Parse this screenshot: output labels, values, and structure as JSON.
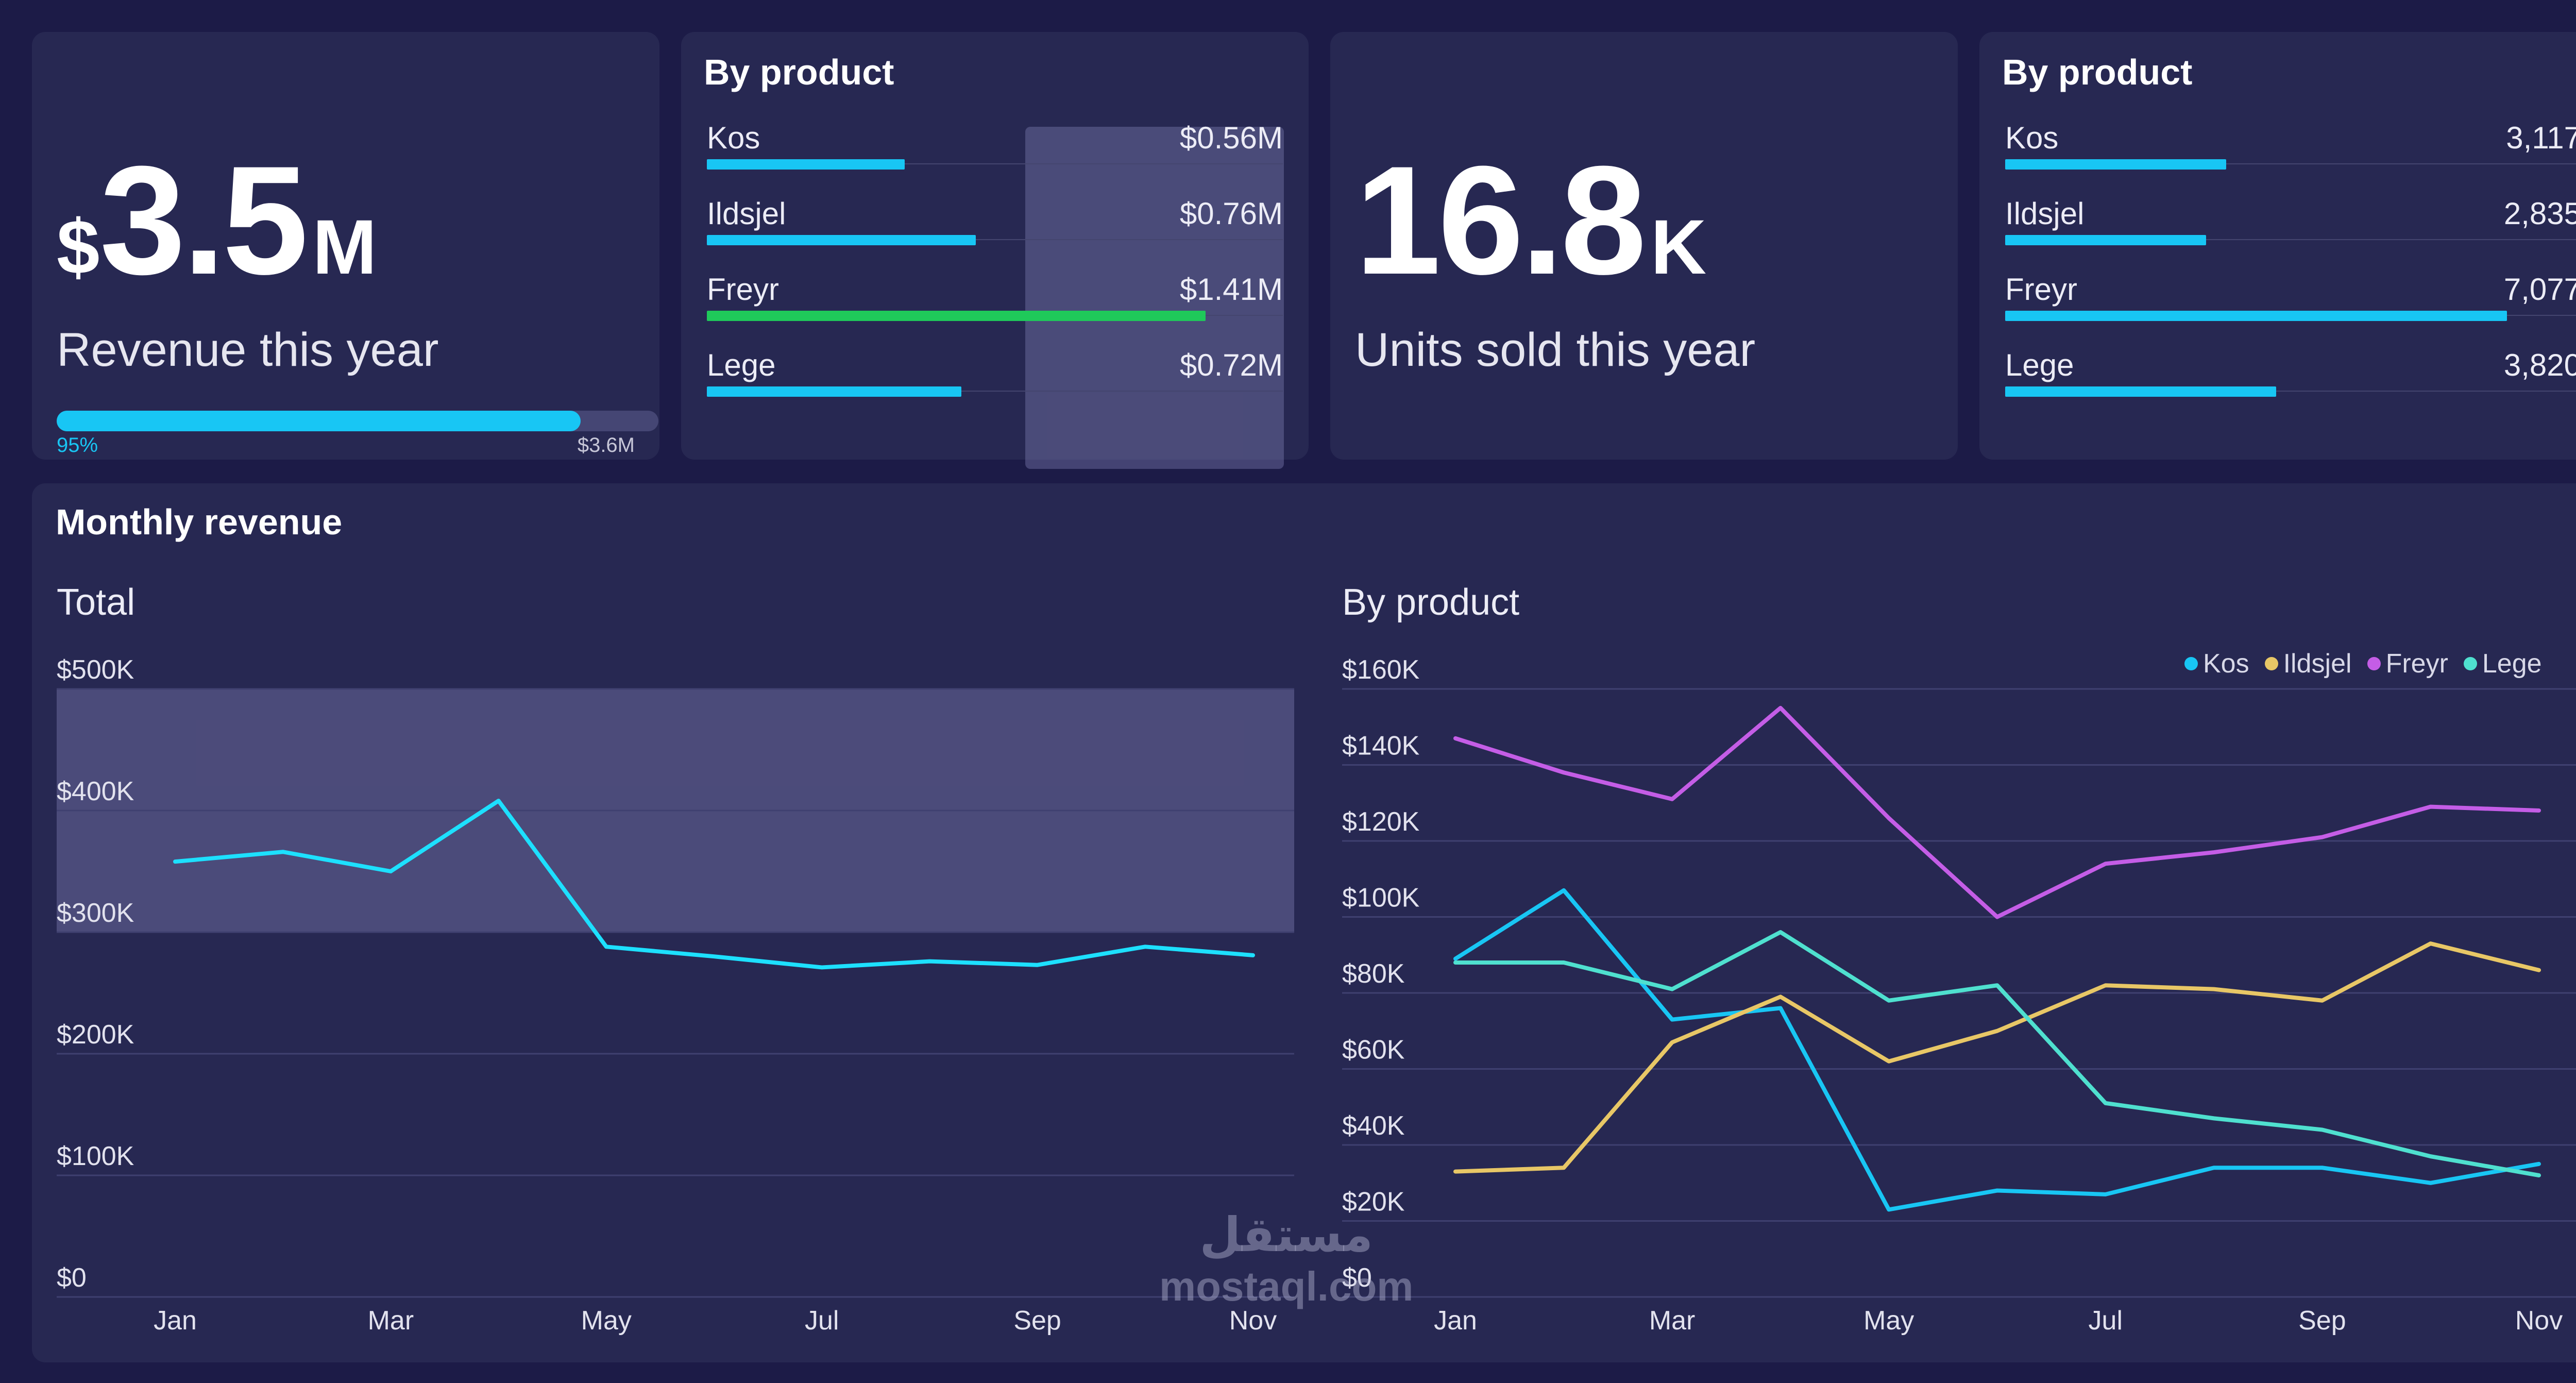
{
  "revenue_card": {
    "prefix": "$",
    "value": "3.5",
    "suffix": "M",
    "label": "Revenue this year",
    "progress_pct_label": "95%",
    "progress_fraction": 0.95,
    "target_label": "$3.6M"
  },
  "revenue_by_product": {
    "title": "By product",
    "items": [
      {
        "name": "Kos",
        "value": "$0.56M",
        "amount": 0.56,
        "color": "#18c6f4"
      },
      {
        "name": "Ildsjel",
        "value": "$0.76M",
        "amount": 0.76,
        "color": "#18c6f4"
      },
      {
        "name": "Freyr",
        "value": "$1.41M",
        "amount": 1.41,
        "color": "#1fc95a"
      },
      {
        "name": "Lege",
        "value": "$0.72M",
        "amount": 0.72,
        "color": "#18c6f4"
      }
    ]
  },
  "units_card": {
    "value": "16.8",
    "suffix": "K",
    "label": "Units sold this year"
  },
  "units_by_product": {
    "title": "By product",
    "items": [
      {
        "name": "Kos",
        "value": "3,117",
        "amount": 3117,
        "color": "#18c6f4"
      },
      {
        "name": "Ildsjel",
        "value": "2,835",
        "amount": 2835,
        "color": "#18c6f4"
      },
      {
        "name": "Freyr",
        "value": "7,077",
        "amount": 7077,
        "color": "#18c6f4"
      },
      {
        "name": "Lege",
        "value": "3,820",
        "amount": 3820,
        "color": "#18c6f4"
      }
    ]
  },
  "monthly": {
    "title": "Monthly revenue",
    "total_title": "Total",
    "product_title": "By product"
  },
  "watermark": {
    "arabic": "مستقل",
    "latin": "mostaql.com"
  },
  "chart_data": [
    {
      "type": "line",
      "title": "Total",
      "x": [
        "Jan",
        "Feb",
        "Mar",
        "Apr",
        "May",
        "Jun",
        "Jul",
        "Aug",
        "Sep",
        "Oct",
        "Nov"
      ],
      "x_tick_labels": [
        "Jan",
        "",
        "Mar",
        "",
        "May",
        "",
        "Jul",
        "",
        "Sep",
        "",
        "Nov"
      ],
      "y_tick_labels": [
        "$500K",
        "$400K",
        "$300K",
        "$200K",
        "$100K",
        "$0"
      ],
      "ylim": [
        0,
        500000
      ],
      "highlight_band": [
        300000,
        500000
      ],
      "grid": true,
      "series": [
        {
          "values": [
            358000,
            366000,
            350000,
            408000,
            288000,
            280000,
            271000,
            276000,
            273000,
            288000,
            281000
          ],
          "color": "#1de0ff"
        }
      ]
    },
    {
      "type": "line",
      "title": "By product",
      "x": [
        "Jan",
        "Feb",
        "Mar",
        "Apr",
        "May",
        "Jun",
        "Jul",
        "Aug",
        "Sep",
        "Oct",
        "Nov"
      ],
      "x_tick_labels": [
        "Jan",
        "",
        "Mar",
        "",
        "May",
        "",
        "Jul",
        "",
        "Sep",
        "",
        "Nov"
      ],
      "y_tick_labels": [
        "$160K",
        "$140K",
        "$120K",
        "$100K",
        "$80K",
        "$60K",
        "$40K",
        "$20K",
        "$0"
      ],
      "ylim": [
        0,
        160000
      ],
      "grid": true,
      "legend": "top-right",
      "series": [
        {
          "name": "Kos",
          "color": "#18c6f4",
          "values": [
            89000,
            107000,
            73000,
            76000,
            23000,
            28000,
            27000,
            34000,
            34000,
            30000,
            35000
          ]
        },
        {
          "name": "Ildsjel",
          "color": "#e8c766",
          "values": [
            33000,
            34000,
            67000,
            79000,
            62000,
            70000,
            82000,
            81000,
            78000,
            93000,
            86000
          ]
        },
        {
          "name": "Freyr",
          "color": "#c45de6",
          "values": [
            147000,
            138000,
            131000,
            155000,
            126000,
            100000,
            114000,
            117000,
            121000,
            129000,
            128000
          ]
        },
        {
          "name": "Lege",
          "color": "#4fe0cf",
          "values": [
            88000,
            88000,
            81000,
            96000,
            78000,
            82000,
            51000,
            47000,
            44000,
            37000,
            32000
          ]
        }
      ]
    }
  ]
}
